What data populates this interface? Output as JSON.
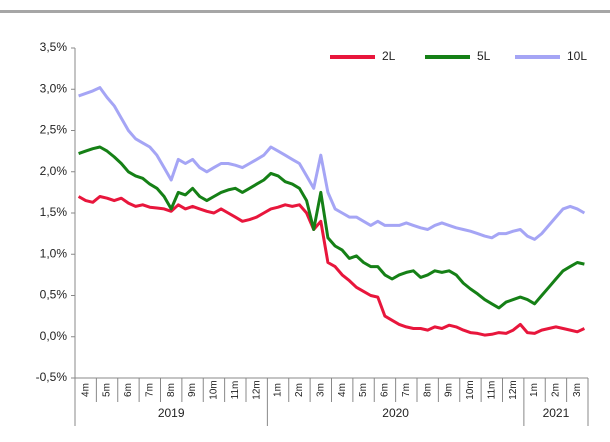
{
  "chart_data": {
    "type": "line",
    "categories": [
      null,
      "4m",
      null,
      null,
      "5m",
      null,
      null,
      "6m",
      null,
      null,
      "7m",
      null,
      null,
      "8m",
      null,
      null,
      "9m",
      null,
      null,
      "10m",
      null,
      null,
      "11m",
      null,
      null,
      "12m",
      null,
      null,
      "1m",
      null,
      null,
      "2m",
      null,
      null,
      "3m",
      null,
      null,
      "4m",
      null,
      null,
      "5m",
      null,
      null,
      "6m",
      null,
      null,
      "7m",
      null,
      null,
      "8m",
      null,
      null,
      "9m",
      null,
      null,
      "10m",
      null,
      null,
      "11m",
      null,
      null,
      "12m",
      null,
      null,
      "1m",
      null,
      null,
      "2m",
      null,
      null,
      "3m",
      null
    ],
    "year_groups": [
      {
        "label": "2019",
        "months": 9
      },
      {
        "label": "2020",
        "months": 12
      },
      {
        "label": "2021",
        "months": 3
      }
    ],
    "series": [
      {
        "name": "2L",
        "color": "#e8163c",
        "values": [
          1.7,
          1.65,
          1.63,
          1.7,
          1.68,
          1.65,
          1.68,
          1.62,
          1.58,
          1.6,
          1.57,
          1.56,
          1.55,
          1.52,
          1.6,
          1.55,
          1.58,
          1.55,
          1.52,
          1.5,
          1.55,
          1.5,
          1.45,
          1.4,
          1.42,
          1.45,
          1.5,
          1.55,
          1.57,
          1.6,
          1.58,
          1.6,
          1.5,
          1.3,
          1.4,
          0.9,
          0.85,
          0.75,
          0.68,
          0.6,
          0.55,
          0.5,
          0.48,
          0.25,
          0.2,
          0.15,
          0.12,
          0.1,
          0.1,
          0.08,
          0.12,
          0.1,
          0.14,
          0.12,
          0.08,
          0.05,
          0.04,
          0.02,
          0.03,
          0.05,
          0.04,
          0.08,
          0.15,
          0.05,
          0.04,
          0.08,
          0.1,
          0.12,
          0.1,
          0.08,
          0.06,
          0.1
        ]
      },
      {
        "name": "5L",
        "color": "#158016",
        "values": [
          2.22,
          2.25,
          2.28,
          2.3,
          2.25,
          2.18,
          2.1,
          2.0,
          1.95,
          1.92,
          1.85,
          1.8,
          1.7,
          1.55,
          1.75,
          1.72,
          1.8,
          1.7,
          1.65,
          1.7,
          1.75,
          1.78,
          1.8,
          1.75,
          1.8,
          1.85,
          1.9,
          1.98,
          1.95,
          1.88,
          1.85,
          1.8,
          1.65,
          1.3,
          1.75,
          1.2,
          1.1,
          1.05,
          0.95,
          0.98,
          0.9,
          0.85,
          0.85,
          0.75,
          0.7,
          0.75,
          0.78,
          0.8,
          0.72,
          0.75,
          0.8,
          0.78,
          0.8,
          0.75,
          0.65,
          0.58,
          0.52,
          0.45,
          0.4,
          0.35,
          0.42,
          0.45,
          0.48,
          0.45,
          0.4,
          0.5,
          0.6,
          0.7,
          0.8,
          0.85,
          0.9,
          0.88
        ]
      },
      {
        "name": "10L",
        "color": "#a5a5f5",
        "values": [
          2.92,
          2.95,
          2.98,
          3.02,
          2.9,
          2.8,
          2.65,
          2.5,
          2.4,
          2.35,
          2.3,
          2.2,
          2.05,
          1.9,
          2.15,
          2.1,
          2.15,
          2.05,
          2.0,
          2.05,
          2.1,
          2.1,
          2.08,
          2.05,
          2.1,
          2.15,
          2.2,
          2.3,
          2.25,
          2.2,
          2.15,
          2.1,
          1.95,
          1.8,
          2.2,
          1.75,
          1.55,
          1.5,
          1.45,
          1.45,
          1.4,
          1.35,
          1.4,
          1.35,
          1.35,
          1.35,
          1.38,
          1.35,
          1.32,
          1.3,
          1.35,
          1.38,
          1.35,
          1.32,
          1.3,
          1.28,
          1.25,
          1.22,
          1.2,
          1.25,
          1.25,
          1.28,
          1.3,
          1.22,
          1.18,
          1.25,
          1.35,
          1.45,
          1.55,
          1.58,
          1.55,
          1.5
        ]
      }
    ],
    "ylim": [
      -0.5,
      3.5
    ],
    "yticks": [
      {
        "value": -0.5,
        "label": "-0,5%"
      },
      {
        "value": 0,
        "label": "0,0%"
      },
      {
        "value": 0.5,
        "label": "0,5%"
      },
      {
        "value": 1,
        "label": "1,0%"
      },
      {
        "value": 1.5,
        "label": "1,5%"
      },
      {
        "value": 2,
        "label": "2,0%"
      },
      {
        "value": 2.5,
        "label": "2,5%"
      },
      {
        "value": 3,
        "label": "3,0%"
      },
      {
        "value": 3.5,
        "label": "3,5%"
      }
    ]
  }
}
